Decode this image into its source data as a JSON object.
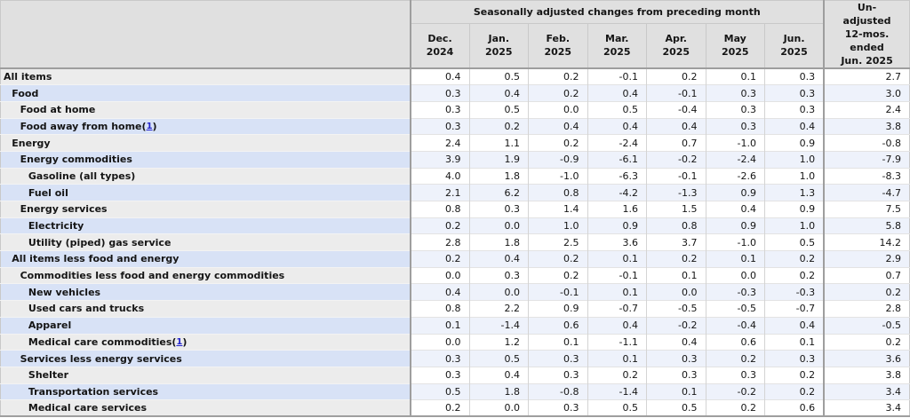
{
  "colors": {
    "header-bg": "#e0e0e0",
    "label-gray": "#ececec",
    "label-blue": "#d8e2f6",
    "data-white": "#ffffff",
    "data-blue": "#eef2fb",
    "text": "#151515",
    "link": "#2424cc",
    "border-strong": "#9e9e9e",
    "border-light": "#c9c9c9",
    "row-line": "#e3e3e3"
  },
  "table": {
    "group_header": "Seasonally adjusted changes from preceding month",
    "unadjusted_header": "Un-\nadjusted\n12-mos.\nended\nJun. 2025",
    "columns": [
      {
        "line1": "Dec.",
        "line2": "2024"
      },
      {
        "line1": "Jan.",
        "line2": "2025"
      },
      {
        "line1": "Feb.",
        "line2": "2025"
      },
      {
        "line1": "Mar.",
        "line2": "2025"
      },
      {
        "line1": "Apr.",
        "line2": "2025"
      },
      {
        "line1": "May",
        "line2": "2025"
      },
      {
        "line1": "Jun.",
        "line2": "2025"
      }
    ],
    "rows": [
      {
        "label": "All items",
        "indent": 0,
        "footnote": null,
        "values": [
          "0.4",
          "0.5",
          "0.2",
          "-0.1",
          "0.2",
          "0.1",
          "0.3"
        ],
        "unadjusted": "2.7"
      },
      {
        "label": "Food",
        "indent": 1,
        "footnote": null,
        "values": [
          "0.3",
          "0.4",
          "0.2",
          "0.4",
          "-0.1",
          "0.3",
          "0.3"
        ],
        "unadjusted": "3.0"
      },
      {
        "label": "Food at home",
        "indent": 2,
        "footnote": null,
        "values": [
          "0.3",
          "0.5",
          "0.0",
          "0.5",
          "-0.4",
          "0.3",
          "0.3"
        ],
        "unadjusted": "2.4"
      },
      {
        "label": "Food away from home",
        "indent": 2,
        "footnote": "1",
        "values": [
          "0.3",
          "0.2",
          "0.4",
          "0.4",
          "0.4",
          "0.3",
          "0.4"
        ],
        "unadjusted": "3.8"
      },
      {
        "label": "Energy",
        "indent": 1,
        "footnote": null,
        "values": [
          "2.4",
          "1.1",
          "0.2",
          "-2.4",
          "0.7",
          "-1.0",
          "0.9"
        ],
        "unadjusted": "-0.8"
      },
      {
        "label": "Energy commodities",
        "indent": 2,
        "footnote": null,
        "values": [
          "3.9",
          "1.9",
          "-0.9",
          "-6.1",
          "-0.2",
          "-2.4",
          "1.0"
        ],
        "unadjusted": "-7.9"
      },
      {
        "label": "Gasoline (all types)",
        "indent": 3,
        "footnote": null,
        "values": [
          "4.0",
          "1.8",
          "-1.0",
          "-6.3",
          "-0.1",
          "-2.6",
          "1.0"
        ],
        "unadjusted": "-8.3"
      },
      {
        "label": "Fuel oil",
        "indent": 3,
        "footnote": null,
        "values": [
          "2.1",
          "6.2",
          "0.8",
          "-4.2",
          "-1.3",
          "0.9",
          "1.3"
        ],
        "unadjusted": "-4.7"
      },
      {
        "label": "Energy services",
        "indent": 2,
        "footnote": null,
        "values": [
          "0.8",
          "0.3",
          "1.4",
          "1.6",
          "1.5",
          "0.4",
          "0.9"
        ],
        "unadjusted": "7.5"
      },
      {
        "label": "Electricity",
        "indent": 3,
        "footnote": null,
        "values": [
          "0.2",
          "0.0",
          "1.0",
          "0.9",
          "0.8",
          "0.9",
          "1.0"
        ],
        "unadjusted": "5.8"
      },
      {
        "label": "Utility (piped) gas service",
        "indent": 3,
        "footnote": null,
        "values": [
          "2.8",
          "1.8",
          "2.5",
          "3.6",
          "3.7",
          "-1.0",
          "0.5"
        ],
        "unadjusted": "14.2"
      },
      {
        "label": "All items less food and energy",
        "indent": 1,
        "footnote": null,
        "values": [
          "0.2",
          "0.4",
          "0.2",
          "0.1",
          "0.2",
          "0.1",
          "0.2"
        ],
        "unadjusted": "2.9"
      },
      {
        "label": "Commodities less food and energy commodities",
        "indent": 2,
        "footnote": null,
        "values": [
          "0.0",
          "0.3",
          "0.2",
          "-0.1",
          "0.1",
          "0.0",
          "0.2"
        ],
        "unadjusted": "0.7"
      },
      {
        "label": "New vehicles",
        "indent": 3,
        "footnote": null,
        "values": [
          "0.4",
          "0.0",
          "-0.1",
          "0.1",
          "0.0",
          "-0.3",
          "-0.3"
        ],
        "unadjusted": "0.2"
      },
      {
        "label": "Used cars and trucks",
        "indent": 3,
        "footnote": null,
        "values": [
          "0.8",
          "2.2",
          "0.9",
          "-0.7",
          "-0.5",
          "-0.5",
          "-0.7"
        ],
        "unadjusted": "2.8"
      },
      {
        "label": "Apparel",
        "indent": 3,
        "footnote": null,
        "values": [
          "0.1",
          "-1.4",
          "0.6",
          "0.4",
          "-0.2",
          "-0.4",
          "0.4"
        ],
        "unadjusted": "-0.5"
      },
      {
        "label": "Medical care commodities",
        "indent": 3,
        "footnote": "1",
        "values": [
          "0.0",
          "1.2",
          "0.1",
          "-1.1",
          "0.4",
          "0.6",
          "0.1"
        ],
        "unadjusted": "0.2"
      },
      {
        "label": "Services less energy services",
        "indent": 2,
        "footnote": null,
        "values": [
          "0.3",
          "0.5",
          "0.3",
          "0.1",
          "0.3",
          "0.2",
          "0.3"
        ],
        "unadjusted": "3.6"
      },
      {
        "label": "Shelter",
        "indent": 3,
        "footnote": null,
        "values": [
          "0.3",
          "0.4",
          "0.3",
          "0.2",
          "0.3",
          "0.3",
          "0.2"
        ],
        "unadjusted": "3.8"
      },
      {
        "label": "Transportation services",
        "indent": 3,
        "footnote": null,
        "values": [
          "0.5",
          "1.8",
          "-0.8",
          "-1.4",
          "0.1",
          "-0.2",
          "0.2"
        ],
        "unadjusted": "3.4"
      },
      {
        "label": "Medical care services",
        "indent": 3,
        "footnote": null,
        "values": [
          "0.2",
          "0.0",
          "0.3",
          "0.5",
          "0.5",
          "0.2",
          "0.6"
        ],
        "unadjusted": "3.4"
      }
    ]
  }
}
